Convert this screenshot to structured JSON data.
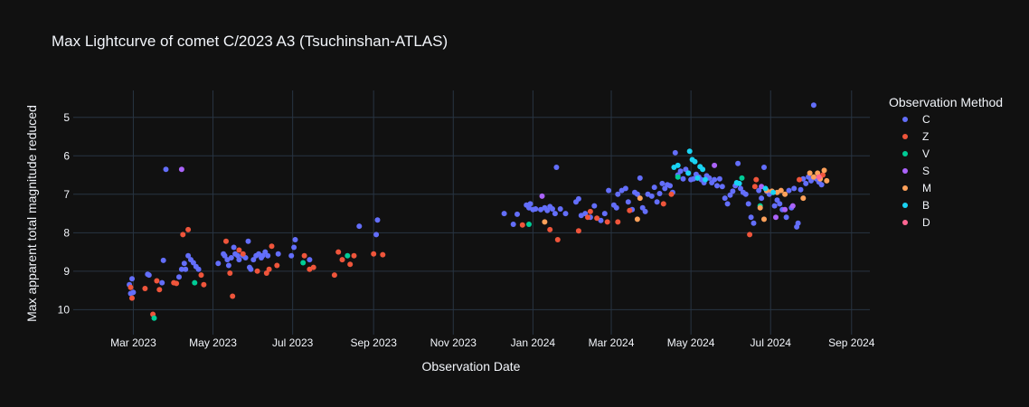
{
  "chart_data": {
    "type": "scatter",
    "title": "Max Lightcurve of comet C/2023 A3 (Tsuchinshan-ATLAS)",
    "xlabel": "Observation Date",
    "ylabel": "Max apparent total magnitude reduced",
    "x_axis": {
      "type": "date",
      "range": [
        "2023-01-14",
        "2024-09-15"
      ],
      "ticks": [
        {
          "date": "2023-03-01",
          "label": "Mar 2023"
        },
        {
          "date": "2023-05-01",
          "label": "May 2023"
        },
        {
          "date": "2023-07-01",
          "label": "Jul 2023"
        },
        {
          "date": "2023-09-01",
          "label": "Sep 2023"
        },
        {
          "date": "2023-11-01",
          "label": "Nov 2023"
        },
        {
          "date": "2024-01-01",
          "label": "Jan 2024"
        },
        {
          "date": "2024-03-01",
          "label": "Mar 2024"
        },
        {
          "date": "2024-05-01",
          "label": "May 2024"
        },
        {
          "date": "2024-07-01",
          "label": "Jul 2024"
        },
        {
          "date": "2024-09-01",
          "label": "Sep 2024"
        }
      ]
    },
    "y_axis": {
      "reversed": true,
      "range": [
        10.65,
        4.3
      ],
      "ticks": [
        5,
        6,
        7,
        8,
        9,
        10
      ]
    },
    "legend": {
      "title": "Observation Method",
      "position": "right"
    },
    "series": [
      {
        "name": "C",
        "color": "#636efa",
        "points": [
          [
            "2023-02-26",
            9.35
          ],
          [
            "2023-02-27",
            9.58
          ],
          [
            "2023-02-28",
            9.2
          ],
          [
            "2023-03-01",
            9.55
          ],
          [
            "2023-03-12",
            9.08
          ],
          [
            "2023-03-13",
            9.1
          ],
          [
            "2023-03-24",
            8.72
          ],
          [
            "2023-03-26",
            6.35
          ],
          [
            "2023-03-23",
            9.3
          ],
          [
            "2023-04-05",
            9.15
          ],
          [
            "2023-04-07",
            8.95
          ],
          [
            "2023-04-09",
            8.8
          ],
          [
            "2023-04-10",
            8.95
          ],
          [
            "2023-04-12",
            8.6
          ],
          [
            "2023-04-14",
            8.7
          ],
          [
            "2023-04-16",
            8.78
          ],
          [
            "2023-04-18",
            8.88
          ],
          [
            "2023-04-20",
            8.95
          ],
          [
            "2023-05-05",
            8.8
          ],
          [
            "2023-05-09",
            8.55
          ],
          [
            "2023-05-10",
            8.6
          ],
          [
            "2023-05-12",
            8.7
          ],
          [
            "2023-05-13",
            8.85
          ],
          [
            "2023-05-15",
            8.65
          ],
          [
            "2023-05-17",
            8.38
          ],
          [
            "2023-05-18",
            8.55
          ],
          [
            "2023-05-20",
            8.6
          ],
          [
            "2023-05-21",
            8.7
          ],
          [
            "2023-05-24",
            8.6
          ],
          [
            "2023-05-26",
            8.65
          ],
          [
            "2023-05-28",
            8.22
          ],
          [
            "2023-05-29",
            8.9
          ],
          [
            "2023-05-30",
            8.95
          ],
          [
            "2023-06-01",
            8.7
          ],
          [
            "2023-06-03",
            8.6
          ],
          [
            "2023-06-05",
            8.55
          ],
          [
            "2023-06-07",
            8.65
          ],
          [
            "2023-06-08",
            8.6
          ],
          [
            "2023-06-10",
            8.5
          ],
          [
            "2023-06-12",
            8.6
          ],
          [
            "2023-06-20",
            8.55
          ],
          [
            "2023-06-30",
            8.6
          ],
          [
            "2023-07-02",
            8.38
          ],
          [
            "2023-07-03",
            8.18
          ],
          [
            "2023-07-14",
            8.7
          ],
          [
            "2023-08-21",
            7.83
          ],
          [
            "2023-09-03",
            8.05
          ],
          [
            "2023-09-04",
            7.67
          ],
          [
            "2023-12-10",
            7.5
          ],
          [
            "2023-12-17",
            7.78
          ],
          [
            "2023-12-20",
            7.52
          ],
          [
            "2023-12-27",
            7.28
          ],
          [
            "2023-12-29",
            7.35
          ],
          [
            "2023-12-30",
            7.25
          ],
          [
            "2024-01-01",
            7.4
          ],
          [
            "2024-01-03",
            7.38
          ],
          [
            "2024-01-07",
            7.4
          ],
          [
            "2024-01-10",
            7.35
          ],
          [
            "2024-01-12",
            7.42
          ],
          [
            "2024-01-14",
            7.32
          ],
          [
            "2024-01-16",
            7.38
          ],
          [
            "2024-01-18",
            7.5
          ],
          [
            "2024-01-19",
            6.3
          ],
          [
            "2024-01-22",
            7.38
          ],
          [
            "2024-01-26",
            7.5
          ],
          [
            "2024-02-03",
            7.2
          ],
          [
            "2024-02-05",
            7.12
          ],
          [
            "2024-02-07",
            7.55
          ],
          [
            "2024-02-10",
            7.5
          ],
          [
            "2024-02-14",
            7.6
          ],
          [
            "2024-02-17",
            7.3
          ],
          [
            "2024-02-22",
            7.68
          ],
          [
            "2024-02-25",
            7.5
          ],
          [
            "2024-02-28",
            6.9
          ],
          [
            "2024-03-03",
            7.28
          ],
          [
            "2024-03-05",
            7.35
          ],
          [
            "2024-03-06",
            7.0
          ],
          [
            "2024-03-09",
            6.9
          ],
          [
            "2024-03-12",
            6.85
          ],
          [
            "2024-03-14",
            7.2
          ],
          [
            "2024-03-17",
            7.4
          ],
          [
            "2024-03-19",
            6.95
          ],
          [
            "2024-03-21",
            7.0
          ],
          [
            "2024-03-23",
            6.58
          ],
          [
            "2024-03-25",
            7.35
          ],
          [
            "2024-03-27",
            7.45
          ],
          [
            "2024-03-29",
            7.0
          ],
          [
            "2024-04-01",
            7.05
          ],
          [
            "2024-04-03",
            6.82
          ],
          [
            "2024-04-05",
            7.2
          ],
          [
            "2024-04-07",
            6.98
          ],
          [
            "2024-04-09",
            6.72
          ],
          [
            "2024-04-11",
            6.85
          ],
          [
            "2024-04-13",
            6.75
          ],
          [
            "2024-04-15",
            6.78
          ],
          [
            "2024-04-17",
            6.95
          ],
          [
            "2024-04-19",
            5.92
          ],
          [
            "2024-04-21",
            6.5
          ],
          [
            "2024-04-23",
            6.4
          ],
          [
            "2024-04-25",
            6.6
          ],
          [
            "2024-04-27",
            6.35
          ],
          [
            "2024-04-29",
            6.45
          ],
          [
            "2024-05-01",
            6.62
          ],
          [
            "2024-05-03",
            6.6
          ],
          [
            "2024-05-05",
            6.48
          ],
          [
            "2024-05-07",
            6.55
          ],
          [
            "2024-05-09",
            6.62
          ],
          [
            "2024-05-11",
            6.7
          ],
          [
            "2024-05-13",
            6.52
          ],
          [
            "2024-05-15",
            6.58
          ],
          [
            "2024-05-17",
            6.7
          ],
          [
            "2024-05-19",
            6.62
          ],
          [
            "2024-05-21",
            6.78
          ],
          [
            "2024-05-23",
            6.6
          ],
          [
            "2024-05-25",
            6.8
          ],
          [
            "2024-05-27",
            7.1
          ],
          [
            "2024-05-29",
            7.25
          ],
          [
            "2024-05-31",
            7.02
          ],
          [
            "2024-06-02",
            6.92
          ],
          [
            "2024-06-04",
            6.78
          ],
          [
            "2024-06-06",
            6.2
          ],
          [
            "2024-06-08",
            6.85
          ],
          [
            "2024-06-10",
            6.95
          ],
          [
            "2024-06-12",
            7.0
          ],
          [
            "2024-06-14",
            7.25
          ],
          [
            "2024-06-16",
            7.6
          ],
          [
            "2024-06-18",
            7.75
          ],
          [
            "2024-06-22",
            6.9
          ],
          [
            "2024-06-24",
            7.1
          ],
          [
            "2024-06-26",
            6.3
          ],
          [
            "2024-06-28",
            6.92
          ],
          [
            "2024-06-30",
            7.0
          ],
          [
            "2024-07-04",
            7.3
          ],
          [
            "2024-07-06",
            7.15
          ],
          [
            "2024-07-08",
            7.25
          ],
          [
            "2024-07-10",
            7.4
          ],
          [
            "2024-07-13",
            7.6
          ],
          [
            "2024-07-15",
            6.9
          ],
          [
            "2024-07-17",
            7.35
          ],
          [
            "2024-07-19",
            6.85
          ],
          [
            "2024-07-21",
            7.85
          ],
          [
            "2024-07-22",
            7.75
          ],
          [
            "2024-07-24",
            6.88
          ],
          [
            "2024-07-26",
            6.6
          ],
          [
            "2024-07-28",
            6.72
          ],
          [
            "2024-07-30",
            6.55
          ],
          [
            "2024-08-01",
            6.65
          ],
          [
            "2024-08-03",
            4.68
          ],
          [
            "2024-08-05",
            6.6
          ],
          [
            "2024-08-07",
            6.68
          ],
          [
            "2024-08-09",
            6.75
          ]
        ]
      },
      {
        "name": "Z",
        "color": "#ef553b",
        "points": [
          [
            "2023-02-27",
            9.42
          ],
          [
            "2023-02-28",
            9.7
          ],
          [
            "2023-03-10",
            9.45
          ],
          [
            "2023-03-16",
            10.12
          ],
          [
            "2023-03-19",
            9.25
          ],
          [
            "2023-03-21",
            9.48
          ],
          [
            "2023-04-01",
            9.3
          ],
          [
            "2023-04-03",
            9.32
          ],
          [
            "2023-04-08",
            8.05
          ],
          [
            "2023-04-12",
            7.92
          ],
          [
            "2023-04-22",
            9.1
          ],
          [
            "2023-04-24",
            9.35
          ],
          [
            "2023-05-11",
            8.22
          ],
          [
            "2023-05-14",
            9.05
          ],
          [
            "2023-05-16",
            9.65
          ],
          [
            "2023-05-21",
            8.45
          ],
          [
            "2023-05-24",
            8.55
          ],
          [
            "2023-06-04",
            9.0
          ],
          [
            "2023-06-11",
            9.05
          ],
          [
            "2023-06-13",
            8.95
          ],
          [
            "2023-06-15",
            8.35
          ],
          [
            "2023-06-19",
            8.85
          ],
          [
            "2023-07-10",
            8.6
          ],
          [
            "2023-07-14",
            8.95
          ],
          [
            "2023-07-17",
            8.9
          ],
          [
            "2023-08-02",
            9.1
          ],
          [
            "2023-08-05",
            8.5
          ],
          [
            "2023-08-08",
            8.7
          ],
          [
            "2023-08-14",
            8.82
          ],
          [
            "2023-08-17",
            8.6
          ],
          [
            "2023-09-01",
            8.55
          ],
          [
            "2023-09-08",
            8.57
          ],
          [
            "2023-12-24",
            7.8
          ],
          [
            "2024-01-14",
            7.92
          ],
          [
            "2024-01-20",
            8.18
          ],
          [
            "2024-02-05",
            7.95
          ],
          [
            "2024-02-12",
            7.6
          ],
          [
            "2024-02-14",
            7.45
          ],
          [
            "2024-02-19",
            7.62
          ],
          [
            "2024-02-27",
            7.72
          ],
          [
            "2024-03-06",
            7.72
          ],
          [
            "2024-03-15",
            7.42
          ],
          [
            "2024-04-10",
            7.25
          ],
          [
            "2024-04-16",
            7.0
          ],
          [
            "2024-06-15",
            8.05
          ],
          [
            "2024-06-19",
            6.8
          ],
          [
            "2024-06-20",
            6.62
          ],
          [
            "2024-07-23",
            6.62
          ],
          [
            "2024-08-10",
            6.5
          ]
        ]
      },
      {
        "name": "V",
        "color": "#00cc96",
        "points": [
          [
            "2023-03-17",
            10.22
          ],
          [
            "2023-04-17",
            9.3
          ],
          [
            "2023-07-09",
            8.78
          ],
          [
            "2023-08-12",
            8.6
          ],
          [
            "2023-12-29",
            7.78
          ],
          [
            "2024-04-21",
            6.55
          ],
          [
            "2024-06-09",
            6.58
          ],
          [
            "2024-06-23",
            7.3
          ]
        ]
      },
      {
        "name": "S",
        "color": "#ab63fa",
        "points": [
          [
            "2023-04-07",
            6.35
          ],
          [
            "2024-01-08",
            7.05
          ],
          [
            "2024-05-19",
            6.25
          ],
          [
            "2024-06-24",
            6.8
          ],
          [
            "2024-07-05",
            7.6
          ],
          [
            "2024-07-12",
            7.4
          ],
          [
            "2024-07-18",
            7.3
          ]
        ]
      },
      {
        "name": "M",
        "color": "#ffa15a",
        "points": [
          [
            "2024-01-10",
            7.72
          ],
          [
            "2024-03-21",
            7.65
          ],
          [
            "2024-03-23",
            7.1
          ],
          [
            "2024-06-23",
            7.35
          ],
          [
            "2024-06-26",
            7.65
          ],
          [
            "2024-06-28",
            6.9
          ],
          [
            "2024-07-02",
            6.92
          ],
          [
            "2024-07-06",
            6.95
          ],
          [
            "2024-07-09",
            6.9
          ],
          [
            "2024-07-12",
            7.0
          ],
          [
            "2024-07-26",
            7.1
          ],
          [
            "2024-07-31",
            6.45
          ],
          [
            "2024-08-03",
            6.55
          ],
          [
            "2024-08-06",
            6.45
          ],
          [
            "2024-08-08",
            6.6
          ],
          [
            "2024-08-11",
            6.38
          ],
          [
            "2024-08-13",
            6.65
          ]
        ]
      },
      {
        "name": "B",
        "color": "#19d3f3",
        "points": [
          [
            "2024-04-18",
            6.3
          ],
          [
            "2024-04-21",
            6.25
          ],
          [
            "2024-04-29",
            6.45
          ],
          [
            "2024-04-30",
            5.88
          ],
          [
            "2024-05-02",
            6.1
          ],
          [
            "2024-05-04",
            6.15
          ],
          [
            "2024-05-06",
            6.58
          ],
          [
            "2024-05-08",
            6.28
          ],
          [
            "2024-05-10",
            6.35
          ],
          [
            "2024-05-12",
            6.62
          ],
          [
            "2024-06-05",
            6.7
          ],
          [
            "2024-06-07",
            6.72
          ],
          [
            "2024-06-27",
            6.85
          ],
          [
            "2024-07-03",
            6.95
          ]
        ]
      },
      {
        "name": "D",
        "color": "#ff6692",
        "points": [
          [
            "2024-08-07",
            6.55
          ]
        ]
      }
    ]
  }
}
